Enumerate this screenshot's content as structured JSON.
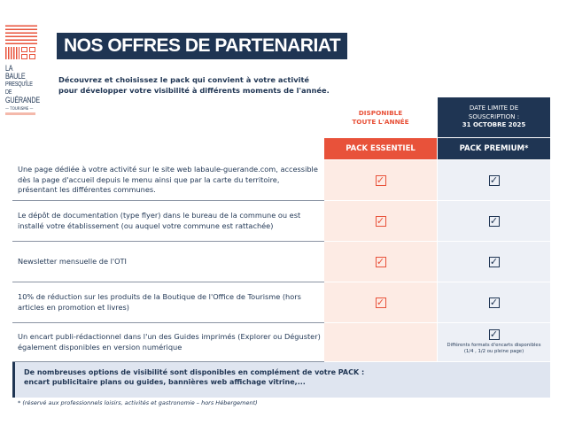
{
  "logo": {
    "line1": "LA BAULE",
    "line2": "PRESQU'ÎLE DE",
    "line3": "GUÉRANDE",
    "line4": "— TOURISME —"
  },
  "title": "NOS OFFRES DE PARTENARIAT",
  "intro": [
    "Découvrez et choisissez le pack qui convient à votre activité",
    "pour développer votre visibilité à différents moments de l'année."
  ],
  "essential": {
    "availability": [
      "DISPONIBLE",
      "TOUTE L'ANNÉE"
    ],
    "label": "PACK ESSENTIEL",
    "color": "#e8523a"
  },
  "premium": {
    "deadline": [
      "DATE  LIMITE DE",
      "SOUSCRIPTION :",
      "31 OCTOBRE 2025"
    ],
    "label": "PACK PREMIUM*",
    "color": "#1f3553"
  },
  "rows": [
    {
      "text": "Une page dédiée à votre activité sur le site web labaule-guerande.com, accessible dès la page d'accueil depuis le menu ainsi que par la carte du territoire, présentant les différentes communes.",
      "essential": true,
      "premium": true
    },
    {
      "text": "Le dépôt de documentation (type flyer) dans le bureau de la commune ou est installé votre établissement (ou auquel votre commune est rattachée)",
      "essential": true,
      "premium": true
    },
    {
      "text": "Newsletter mensuelle de l'OTI",
      "essential": true,
      "premium": true
    },
    {
      "text": "10% de réduction sur les produits de la Boutique de l'Office de Tourisme (hors articles en promotion et livres)",
      "essential": true,
      "premium": true
    },
    {
      "text": "Un encart publi-rédactionnel dans l'un des Guides imprimés (Explorer ou Déguster) également disponibles en version numérique",
      "essential": false,
      "premium": true,
      "premium_note": [
        "Différents formats d'encarts disponibles",
        "(1/4 , 1/2 ou pleine page)"
      ]
    }
  ],
  "banner": [
    "De nombreuses options de visibilité sont disponibles en complément de votre PACK :",
    "encart publicitaire plans ou guides, bannières web affichage vitrine,..."
  ],
  "footnote": "* (réservé aux professionnels loisirs, activités et gastronomie – hors Hébergement)"
}
